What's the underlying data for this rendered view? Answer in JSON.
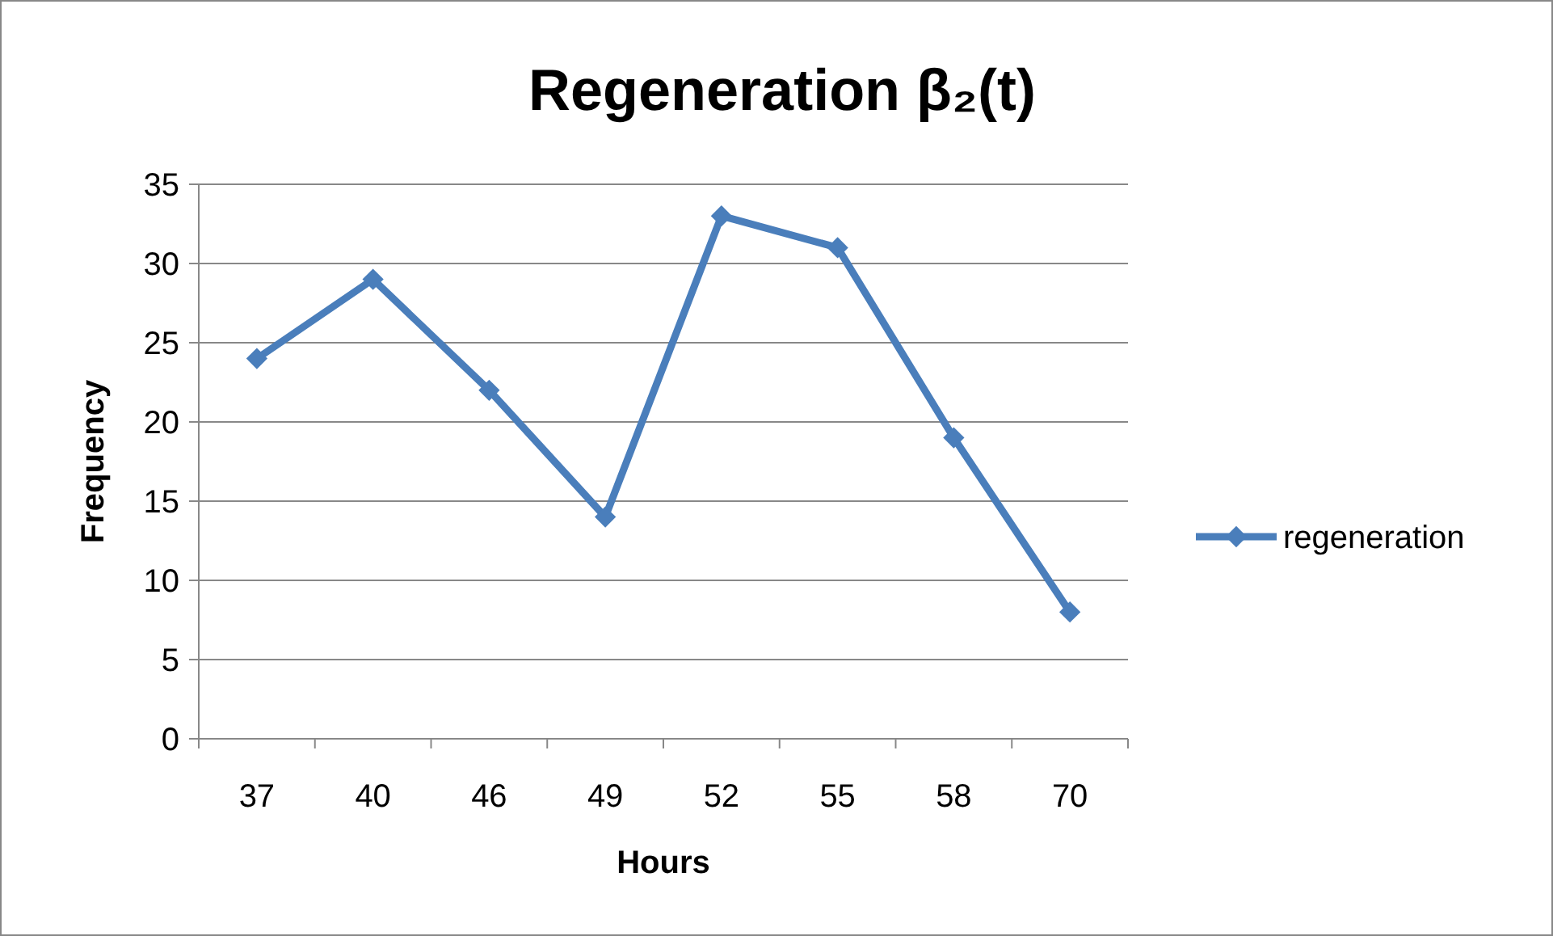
{
  "chart_data": {
    "type": "line",
    "title": "Regeneration β₂(t)",
    "xlabel": "Hours",
    "ylabel": "Frequency",
    "categories": [
      "37",
      "40",
      "46",
      "49",
      "52",
      "55",
      "58",
      "70"
    ],
    "series": [
      {
        "name": "regeneration",
        "color": "#4a7ebb",
        "values": [
          24,
          29,
          22,
          14,
          33,
          31,
          19,
          8
        ]
      }
    ],
    "ylim": [
      0,
      35
    ],
    "yticks": [
      0,
      5,
      10,
      15,
      20,
      25,
      30,
      35
    ],
    "grid": "y",
    "legend": "right",
    "marker": "diamond",
    "line_style": "solid"
  }
}
